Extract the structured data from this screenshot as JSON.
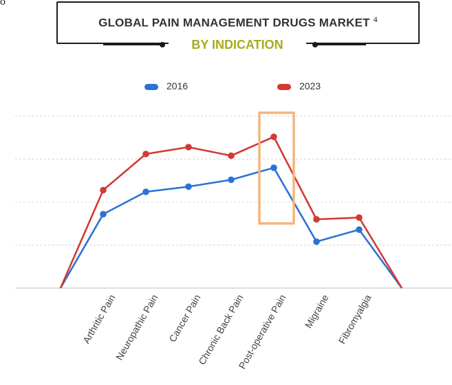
{
  "page": {
    "corner_fragment": "o",
    "title": "GLOBAL PAIN MANAGEMENT DRUGS MARKET",
    "title_superscript": "4",
    "subtitle": "BY INDICATION"
  },
  "colors": {
    "title": "#333333",
    "subtitle": "#a8ab1d",
    "series_2016": "#2a73d4",
    "series_2023": "#d23a32",
    "highlight": "#f6b47e",
    "grid": "#d6d6d6"
  },
  "chart_data": {
    "type": "line",
    "title": "GLOBAL PAIN MANAGEMENT DRUGS MARKET",
    "subtitle": "BY INDICATION",
    "xlabel": "",
    "ylabel": "",
    "categories": [
      "",
      "Arthritic Pain",
      "Neuropathic Pain",
      "Cancer Pain",
      "Chronic Back Pain",
      "Post-operative Pain",
      "Migraine",
      "Fibromyalgia",
      ""
    ],
    "series": [
      {
        "name": "2016",
        "color": "#2a73d4",
        "values": [
          0,
          43,
          56,
          59,
          63,
          70,
          27,
          34,
          0
        ]
      },
      {
        "name": "2023",
        "color": "#d23a32",
        "values": [
          0,
          57,
          78,
          82,
          77,
          88,
          40,
          41,
          0
        ]
      }
    ],
    "ylim": [
      0,
      100
    ],
    "y_gridlines": [
      0,
      25,
      50,
      75,
      100
    ],
    "y_tick_labels_shown": false,
    "grid": true,
    "legend_position": "top",
    "highlight_category": "Post-operative Pain"
  }
}
